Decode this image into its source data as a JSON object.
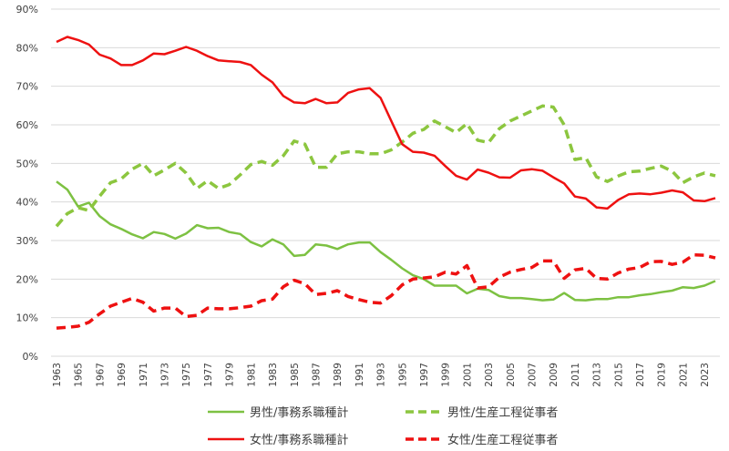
{
  "chart_data": {
    "type": "line",
    "title": "",
    "xlabel": "",
    "ylabel": "",
    "ylim": [
      0,
      90
    ],
    "y_ticks": [
      "0%",
      "10%",
      "20%",
      "30%",
      "40%",
      "50%",
      "60%",
      "70%",
      "80%",
      "90%"
    ],
    "x_range": [
      1963,
      2024
    ],
    "x_tick_labels": [
      "1963",
      "1965",
      "1967",
      "1969",
      "1971",
      "1973",
      "1975",
      "1977",
      "1979",
      "1981",
      "1983",
      "1985",
      "1987",
      "1989",
      "1991",
      "1993",
      "1995",
      "1997",
      "1999",
      "2001",
      "2003",
      "2005",
      "2007",
      "2009",
      "2011",
      "2013",
      "2015",
      "2017",
      "2019",
      "2021",
      "2023"
    ],
    "grid": "horizontal",
    "legend_position": "bottom",
    "series": [
      {
        "name": "男性/事務系職種計",
        "color": "#7dc142",
        "style": "solid",
        "values": [
          45.3,
          43.2,
          38.8,
          39.8,
          36.3,
          34.2,
          33,
          31.6,
          30.6,
          32.2,
          31.7,
          30.5,
          31.8,
          34,
          33.2,
          33.3,
          32.2,
          31.7,
          29.6,
          28.5,
          30.3,
          29,
          26,
          26.3,
          29,
          28.7,
          27.8,
          29,
          29.5,
          29.5,
          27,
          25,
          22.8,
          21,
          20,
          18.3,
          18.3,
          18.3,
          16.3,
          17.5,
          17.2,
          15.6,
          15.1,
          15.1,
          14.8,
          14.5,
          14.7,
          16.4,
          14.6,
          14.5,
          14.8,
          14.8,
          15.3,
          15.3,
          15.8,
          16.1,
          16.6,
          17,
          17.9,
          17.7,
          18.3,
          19.5
        ]
      },
      {
        "name": "男性/生産工程従事者",
        "color": "#8cc63f",
        "style": "dashed",
        "values": [
          33.7,
          37,
          38.5,
          37.8,
          41.5,
          45,
          46,
          48.5,
          50,
          46.8,
          48.3,
          50,
          47.5,
          43.5,
          45.5,
          43.5,
          44.5,
          47,
          49.7,
          50.5,
          49.5,
          52,
          55.8,
          55,
          49,
          49,
          52.5,
          53,
          53,
          52.5,
          52.5,
          53.5,
          55.5,
          57.8,
          58.8,
          61,
          59.5,
          58,
          60.3,
          56,
          55.4,
          59,
          61,
          62.3,
          63.6,
          64.9,
          64.6,
          60,
          51,
          51.5,
          46.5,
          45.3,
          46.7,
          47.8,
          48,
          48.7,
          49.3,
          48,
          45,
          46.5,
          47.5,
          46.8
        ]
      },
      {
        "name": "女性/事務系職種計",
        "color": "#ee1111",
        "style": "solid",
        "values": [
          81.5,
          82.8,
          82,
          80.8,
          78.2,
          77.2,
          75.5,
          75.5,
          76.7,
          78.5,
          78.3,
          79.2,
          80.2,
          79.2,
          77.8,
          76.7,
          76.5,
          76.3,
          75.5,
          73,
          71,
          67.5,
          65.8,
          65.6,
          66.7,
          65.6,
          65.8,
          68.3,
          69.2,
          69.5,
          67,
          61,
          55,
          53,
          52.8,
          52,
          49.3,
          46.8,
          45.8,
          48.4,
          47.6,
          46.4,
          46.3,
          48.2,
          48.5,
          48.1,
          46.4,
          44.8,
          41.4,
          40.9,
          38.6,
          38.3,
          40.5,
          42,
          42.2,
          42,
          42.4,
          43,
          42.5,
          40.4,
          40.2,
          41
        ]
      },
      {
        "name": "女性/生産工程従事者",
        "color": "#ee1111",
        "style": "dashed",
        "values": [
          7.3,
          7.5,
          7.8,
          8.8,
          11,
          13,
          14,
          15,
          14,
          11.7,
          12.5,
          12.5,
          10.3,
          10.6,
          12.5,
          12.3,
          12.3,
          12.6,
          13,
          14.4,
          14.8,
          18,
          19.7,
          18.8,
          16,
          16.3,
          17,
          15.5,
          14.7,
          14,
          13.8,
          15.7,
          18.5,
          20,
          20.3,
          20.6,
          21.8,
          21.3,
          23.5,
          17.7,
          18,
          20.5,
          21.8,
          22.5,
          23,
          24.7,
          24.7,
          20.2,
          22.4,
          22.8,
          20.2,
          20,
          21.6,
          22.6,
          23,
          24.5,
          24.6,
          23.8,
          24.4,
          26.3,
          26.2,
          25.5
        ]
      }
    ]
  }
}
